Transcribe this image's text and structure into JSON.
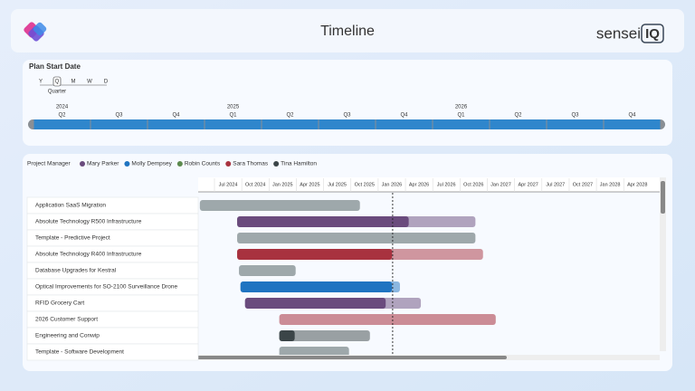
{
  "header": {
    "title": "Timeline",
    "brand": "sensei",
    "brand_badge": "IQ"
  },
  "slicer": {
    "title": "Plan Start Date",
    "levels": [
      "Y",
      "Q",
      "M",
      "W",
      "D"
    ],
    "selected_level": 1,
    "level_name": "Quarter",
    "year_labels": [
      "2024",
      null,
      null,
      "2025",
      null,
      null,
      null,
      "2026",
      null,
      null,
      null
    ],
    "quarters": [
      "Q2",
      "Q3",
      "Q4",
      "Q1",
      "Q2",
      "Q3",
      "Q4",
      "Q1",
      "Q2",
      "Q3",
      "Q4"
    ],
    "color": "#2f86cc"
  },
  "gantt": {
    "legend_title": "Project Manager",
    "managers": [
      {
        "name": "Mary Parker",
        "color": "#6a4b7d"
      },
      {
        "name": "Molly Dempsey",
        "color": "#1f74c1"
      },
      {
        "name": "Robin Counts",
        "color": "#5c8a4e"
      },
      {
        "name": "Sara Thomas",
        "color": "#a8323f"
      },
      {
        "name": "Tina Hamilton",
        "color": "#3b4548"
      }
    ],
    "unassigned_color": "#9ea8ab",
    "axis_ticks": [
      {
        "value": "2024-07-01",
        "label": "Jul 2024"
      },
      {
        "value": "2024-10-01",
        "label": "Oct 2024"
      },
      {
        "value": "2025-01-01",
        "label": "Jan 2025"
      },
      {
        "value": "2025-04-01",
        "label": "Apr 2025"
      },
      {
        "value": "2025-07-01",
        "label": "Jul 2025"
      },
      {
        "value": "2025-10-01",
        "label": "Oct 2025"
      },
      {
        "value": "2026-01-01",
        "label": "Jan 2026"
      },
      {
        "value": "2026-04-01",
        "label": "Apr 2026"
      },
      {
        "value": "2026-07-01",
        "label": "Jul 2026"
      },
      {
        "value": "2026-10-01",
        "label": "Oct 2026"
      },
      {
        "value": "2027-01-01",
        "label": "Jan 2027"
      },
      {
        "value": "2027-04-01",
        "label": "Apr 2027"
      },
      {
        "value": "2027-07-01",
        "label": "Jul 2027"
      },
      {
        "value": "2027-10-01",
        "label": "Oct 2027"
      },
      {
        "value": "2028-01-01",
        "label": "Jan 2028"
      },
      {
        "value": "2028-04-01",
        "label": "Apr 2028"
      }
    ],
    "today": "2026-01-04",
    "tasks": [
      {
        "name": "Application SaaS Migration",
        "manager": null,
        "start": "2024-03-28",
        "end": "2025-09-16",
        "progress": 0
      },
      {
        "name": "Absolute Technology R500 Infrastructure",
        "manager": 0,
        "start": "2024-08-01",
        "end": "2026-10-07",
        "progress": 72
      },
      {
        "name": "Template - Predictive Project",
        "manager": null,
        "start": "2024-08-01",
        "end": "2026-10-07",
        "progress": 0
      },
      {
        "name": "Absolute Technology R400 Infrastructure",
        "manager": 3,
        "start": "2024-08-01",
        "end": "2026-11-02",
        "progress": 63
      },
      {
        "name": "Database Upgrades for Kestral",
        "manager": null,
        "start": "2024-08-07",
        "end": "2025-02-14",
        "progress": 0
      },
      {
        "name": "Optical Improvements for SO-2100 Surveillance Drone",
        "manager": 1,
        "start": "2024-08-12",
        "end": "2026-01-28",
        "progress": 95
      },
      {
        "name": "RFID Grocery Cart",
        "manager": 0,
        "start": "2024-08-27",
        "end": "2026-04-07",
        "progress": 80
      },
      {
        "name": "2026 Customer Support",
        "manager": 3,
        "start": "2024-12-20",
        "end": "2026-12-14",
        "progress": 0
      },
      {
        "name": "Engineering and Conwip",
        "manager": 4,
        "start": "2024-12-20",
        "end": "2025-10-19",
        "progress": 17
      },
      {
        "name": "Template - Software Development",
        "manager": null,
        "start": "2024-12-20",
        "end": "2025-08-10",
        "progress": 0
      }
    ]
  }
}
